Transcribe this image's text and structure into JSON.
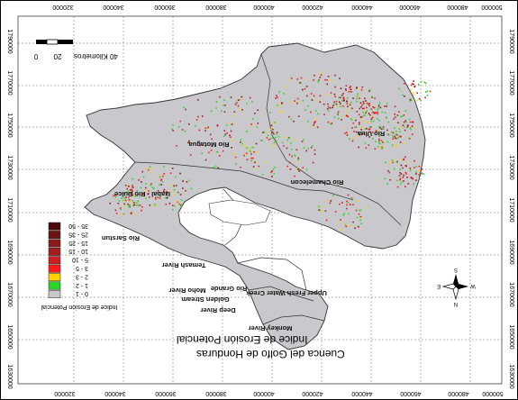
{
  "map": {
    "title_line1": "Indice de Erosión Potencial",
    "title_line2": "Cuenca del Golfo de Honduras",
    "top_ticks": [
      "320000",
      "340000",
      "360000",
      "380000",
      "400000",
      "420000",
      "440000",
      "460000",
      "480000",
      "500000"
    ],
    "bottom_ticks": [
      "320000",
      "340000",
      "360000",
      "380000",
      "400000",
      "420000",
      "440000",
      "460000",
      "480000",
      "500000"
    ],
    "left_ticks": [
      "1790000",
      "1770000",
      "1750000",
      "1730000",
      "1710000",
      "1690000",
      "1670000",
      "1650000",
      "1630000"
    ],
    "right_ticks": [
      "1790000",
      "1770000",
      "1750000",
      "1730000",
      "1710000",
      "1690000",
      "1670000",
      "1650000",
      "1630000"
    ],
    "scale_labels": [
      "0",
      "20",
      "40 Kilometros"
    ],
    "north_labels": {
      "n": "N",
      "e": "E",
      "s": "S",
      "w": "W"
    },
    "basin_labels": [
      "Rio Ulua",
      "Rio Motagua",
      "Rio Chamelecon",
      "Izabal - Rio Dulce",
      "Rio Sarstun",
      "Temash River",
      "Moho River",
      "Golden Stream",
      "Rio Grande",
      "Deep River",
      "Upper Fresh Water Creek",
      "Monkey River"
    ]
  },
  "legend": {
    "title": "Indice de Erosion Potencial",
    "items": [
      {
        "label": "35 - 50",
        "color": "#4a0a0a"
      },
      {
        "label": "25 - 35",
        "color": "#6b1414"
      },
      {
        "label": "15 - 25",
        "color": "#8a1a1a"
      },
      {
        "label": "10 - 15",
        "color": "#a51d1d"
      },
      {
        "label": "5 - 10",
        "color": "#cc2020"
      },
      {
        "label": "3 - 5",
        "color": "#ff1a1a"
      },
      {
        "label": "2 - 3",
        "color": "#ffd200"
      },
      {
        "label": "1 - 2",
        "color": "#2bd42b"
      },
      {
        "label": "0 - 1",
        "color": "#c8c8c8"
      }
    ]
  }
}
